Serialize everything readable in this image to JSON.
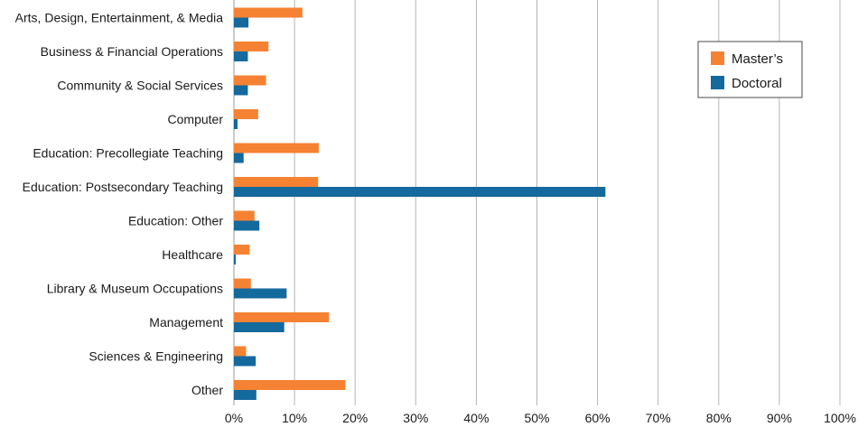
{
  "chart_data": {
    "type": "bar",
    "orientation": "horizontal",
    "categories": [
      "Arts, Design, Entertainment, & Media",
      "Business & Financial Operations",
      "Community & Social Services",
      "Computer",
      "Education: Precollegiate Teaching",
      "Education: Postsecondary Teaching",
      "Education: Other",
      "Healthcare",
      "Library & Museum Occupations",
      "Management",
      "Sciences & Engineering",
      "Other"
    ],
    "series": [
      {
        "name": "Master's",
        "color": "#f58233",
        "values": [
          11.3,
          5.7,
          5.3,
          4.0,
          14.0,
          13.9,
          3.4,
          2.6,
          2.8,
          15.7,
          2.0,
          18.4
        ]
      },
      {
        "name": "Doctoral",
        "color": "#14699d",
        "values": [
          2.4,
          2.3,
          2.3,
          0.6,
          1.6,
          61.3,
          4.2,
          0.3,
          8.7,
          8.3,
          3.6,
          3.7
        ]
      }
    ],
    "xlim": [
      0,
      100
    ],
    "xticks": [
      0,
      10,
      20,
      30,
      40,
      50,
      60,
      70,
      80,
      90,
      100
    ],
    "xtick_suffix": "%",
    "grid": "vertical",
    "legend_position": "top-right",
    "title": "",
    "xlabel": "",
    "ylabel": ""
  },
  "legend": {
    "masters_label": "Master’s",
    "doctoral_label": "Doctoral"
  }
}
